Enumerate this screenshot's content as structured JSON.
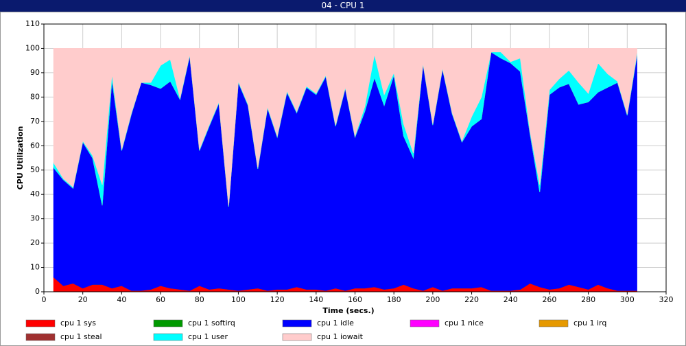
{
  "window_title": "04 - CPU 1",
  "chart_data": {
    "type": "stacked_area",
    "xlabel": "Time (secs.)",
    "ylabel": "CPU Utilization",
    "x": [
      5,
      10,
      15,
      20,
      25,
      30,
      35,
      40,
      45,
      50,
      55,
      60,
      65,
      70,
      75,
      80,
      85,
      90,
      95,
      100,
      105,
      110,
      115,
      120,
      125,
      130,
      135,
      140,
      145,
      150,
      155,
      160,
      165,
      170,
      175,
      180,
      185,
      190,
      195,
      200,
      205,
      210,
      215,
      220,
      225,
      230,
      235,
      240,
      245,
      250,
      255,
      260,
      265,
      270,
      275,
      280,
      285,
      290,
      295,
      300,
      305
    ],
    "xlim": [
      0,
      320
    ],
    "xticks": [
      0,
      20,
      40,
      60,
      80,
      100,
      120,
      140,
      160,
      180,
      200,
      220,
      240,
      260,
      280,
      300,
      320
    ],
    "ylim": [
      0,
      110
    ],
    "yticks": [
      0,
      10,
      20,
      30,
      40,
      50,
      60,
      70,
      80,
      90,
      100,
      110
    ],
    "grid": true,
    "series": [
      {
        "name": "cpu 1 sys",
        "color": "#ff0000",
        "values": [
          6,
          2.5,
          3.5,
          1.5,
          3,
          3,
          1.5,
          2.5,
          0.5,
          0.5,
          1,
          2.5,
          1.5,
          1,
          0.5,
          2.5,
          1,
          1.5,
          1,
          0.5,
          1,
          1.5,
          0.5,
          1,
          1,
          2,
          1,
          1,
          0.5,
          1.5,
          0.5,
          1.5,
          1.5,
          2,
          1,
          1.5,
          3,
          1.5,
          0.5,
          2,
          0.5,
          1.5,
          1.5,
          1.5,
          2,
          0.5,
          0.5,
          0.5,
          1,
          3.5,
          2,
          1,
          1.5,
          3,
          2,
          1,
          3,
          1.5,
          0.5,
          0.5,
          0.5
        ]
      },
      {
        "name": "cpu 1 softirq",
        "color": "#009900",
        "values": [
          0,
          0,
          0,
          0,
          0,
          0,
          0,
          0,
          0,
          0,
          0,
          0,
          0,
          0,
          0,
          0,
          0,
          0,
          0,
          0,
          0,
          0,
          0,
          0,
          0,
          0,
          0,
          0,
          0,
          0,
          0,
          0,
          0,
          0,
          0,
          0,
          0,
          0,
          0,
          0,
          0,
          0,
          0,
          0,
          0,
          0,
          0,
          0,
          0,
          0,
          0,
          0,
          0,
          0,
          0,
          0,
          0,
          0,
          0,
          0,
          0
        ]
      },
      {
        "name": "cpu 1 idle",
        "color": "#0000ff",
        "values": [
          45,
          43.5,
          39,
          60,
          52,
          32.5,
          85.5,
          55.5,
          72.5,
          85.5,
          84,
          81,
          85,
          78,
          96.5,
          55.5,
          67,
          76,
          34,
          85.5,
          75.5,
          49,
          75,
          62.5,
          81,
          71.5,
          83,
          80,
          88,
          66.5,
          83,
          62,
          72.5,
          86,
          75.5,
          87.5,
          61,
          53.5,
          93,
          66.5,
          91,
          71.5,
          60,
          66.5,
          69,
          98,
          95.5,
          93.5,
          89.5,
          61.5,
          39,
          80,
          82.5,
          82.5,
          75,
          77,
          79,
          82.5,
          85.5,
          72,
          96.5
        ]
      },
      {
        "name": "cpu 1 nice",
        "color": "#ff00ff",
        "values": [
          0,
          0,
          0,
          0,
          0,
          0,
          0,
          0,
          0,
          0,
          0,
          0,
          0,
          0,
          0,
          0,
          0,
          0,
          0,
          0,
          0,
          0,
          0,
          0,
          0,
          0,
          0,
          0,
          0,
          0,
          0,
          0,
          0,
          0,
          0,
          0,
          0,
          0,
          0,
          0,
          0,
          0,
          0,
          0,
          0,
          0,
          0,
          0,
          0,
          0,
          0,
          0,
          0,
          0,
          0,
          0,
          0,
          0,
          0,
          0,
          0
        ]
      },
      {
        "name": "cpu 1 irq",
        "color": "#e69900",
        "values": [
          0,
          0,
          0,
          0,
          0,
          0,
          0,
          0,
          0,
          0,
          0,
          0,
          0,
          0,
          0,
          0,
          0,
          0,
          0,
          0,
          0,
          0,
          0,
          0,
          0,
          0,
          0,
          0,
          0,
          0,
          0,
          0,
          0,
          0,
          0,
          0,
          0,
          0,
          0,
          0,
          0,
          0,
          0,
          0,
          0,
          0,
          0,
          0,
          0,
          0,
          0,
          0,
          0,
          0,
          0,
          0,
          0,
          0,
          0,
          0,
          0
        ]
      },
      {
        "name": "cpu 1 steal",
        "color": "#a03030",
        "values": [
          0,
          0,
          0,
          0,
          0,
          0,
          0,
          0,
          0,
          0,
          0,
          0,
          0,
          0,
          0,
          0,
          0,
          0,
          0,
          0,
          0,
          0,
          0,
          0,
          0,
          0,
          0,
          0,
          0,
          0,
          0,
          0,
          0,
          0,
          0,
          0,
          0,
          0,
          0,
          0,
          0,
          0,
          0,
          0,
          0,
          0,
          0,
          0,
          0,
          0,
          0,
          0,
          0,
          0,
          0,
          0,
          0,
          0,
          0,
          0,
          0
        ]
      },
      {
        "name": "cpu 1 user",
        "color": "#00ffff",
        "values": [
          2,
          0.5,
          0.5,
          0.5,
          1,
          8.5,
          2.5,
          0.5,
          0.5,
          0,
          1,
          9.5,
          9,
          0.5,
          0.5,
          0.5,
          0.5,
          0.5,
          0.5,
          0.5,
          0.5,
          0.5,
          0.5,
          0.5,
          0.5,
          0.5,
          0.5,
          0.5,
          0.5,
          0.5,
          0.5,
          0.5,
          2,
          9.5,
          4.5,
          1,
          5,
          2,
          0.5,
          0.5,
          0.5,
          0.5,
          0.5,
          4,
          9,
          0,
          2.5,
          0.5,
          5.5,
          1,
          3,
          2,
          3.5,
          5.5,
          9,
          3.5,
          12,
          5.5,
          0.5,
          0.5,
          1
        ]
      },
      {
        "name": "cpu 1 iowait",
        "color": "#ffcccc",
        "values": [
          47,
          53.5,
          57,
          38,
          44,
          56,
          10.5,
          41.5,
          26.5,
          14,
          14,
          7,
          4.5,
          20.5,
          2.5,
          41.5,
          31.5,
          22,
          64.5,
          13.5,
          23,
          49,
          24,
          36,
          17.5,
          26,
          15.5,
          18.5,
          11,
          31.5,
          16,
          36,
          24,
          2.5,
          19,
          10,
          31,
          43,
          6,
          31,
          8,
          26.5,
          38,
          28,
          20,
          1.5,
          1.5,
          5.5,
          4,
          34,
          56,
          17,
          12.5,
          9,
          14,
          18.5,
          6,
          10.5,
          13.5,
          27,
          2
        ]
      }
    ]
  }
}
